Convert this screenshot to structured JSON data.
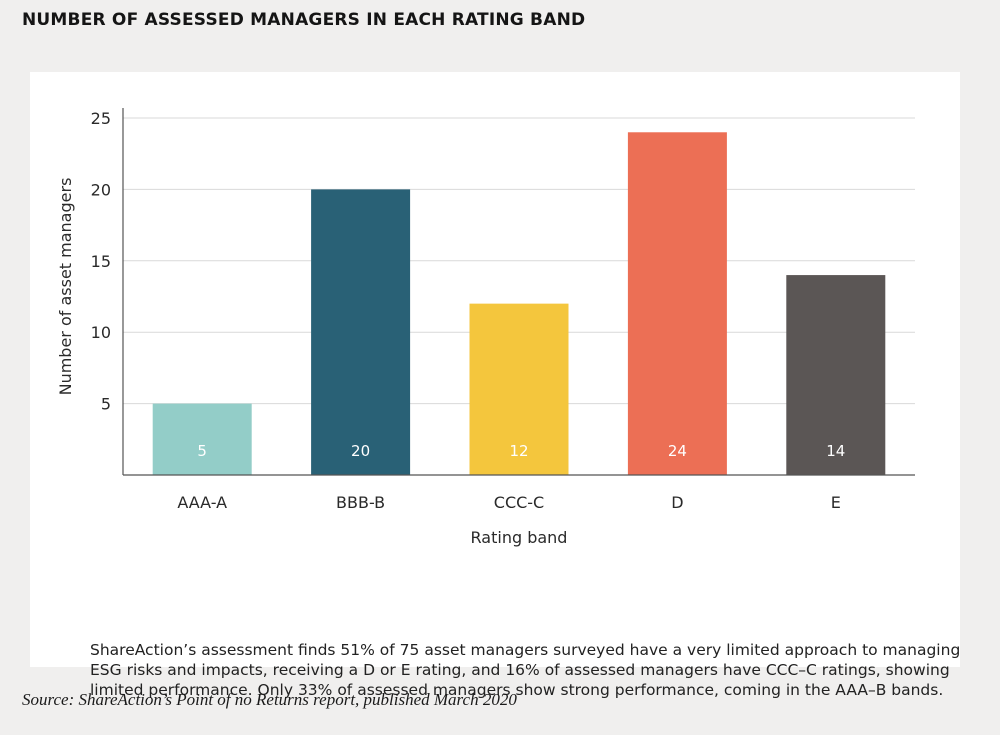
{
  "heading": "NUMBER OF ASSESSED MANAGERS IN EACH RATING BAND",
  "caption": "ShareAction’s assessment finds 51% of 75 asset managers surveyed have a very limited approach to managing ESG risks and impacts, receiving a D or E rating, and 16% of assessed managers have CCC–C ratings, showing limited performance. Only 33% of assessed managers show strong performance, coming in the AAA–B bands.",
  "source": "Source: ShareAction’s Point of no Returns report, published March 2020",
  "chart_data": {
    "type": "bar",
    "categories": [
      "AAA-A",
      "BBB-B",
      "CCC-C",
      "D",
      "E"
    ],
    "values": [
      5,
      20,
      12,
      24,
      14
    ],
    "data_labels": [
      "5",
      "20",
      "12",
      "24",
      "14"
    ],
    "colors": [
      "#93cdc8",
      "#296176",
      "#f4c63d",
      "#ec6f55",
      "#5b5655"
    ],
    "xlabel": "Rating band",
    "ylabel": "Number of asset managers",
    "ylim": [
      0,
      25
    ],
    "yticks": [
      5,
      10,
      15,
      20,
      25
    ],
    "ytick_labels": [
      "5",
      "10",
      "15",
      "20",
      "25"
    ],
    "grid": true,
    "gridline_color": "#d9d9d9",
    "axis_color": "#555555"
  }
}
